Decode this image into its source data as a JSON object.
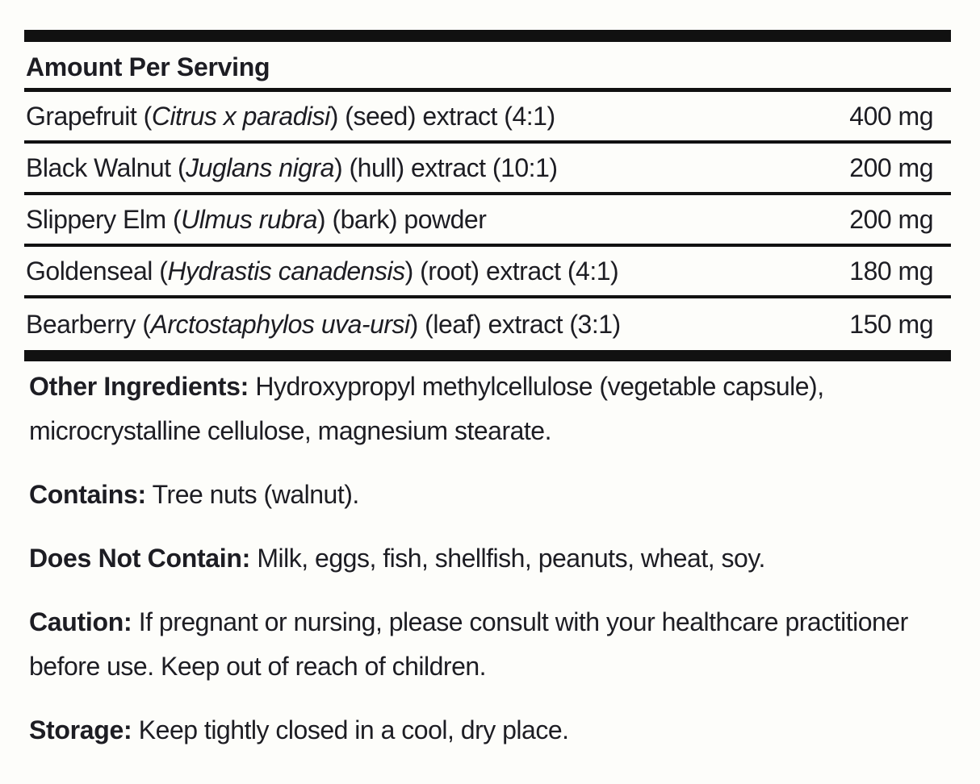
{
  "panel": {
    "header": "Amount Per Serving",
    "rows": [
      {
        "prefix": "Grapefruit (",
        "latin": "Citrus x paradisi",
        "suffix": ") (seed) extract (4:1)",
        "amount": "400 mg"
      },
      {
        "prefix": "Black Walnut (",
        "latin": "Juglans nigra",
        "suffix": ") (hull) extract (10:1)",
        "amount": "200 mg"
      },
      {
        "prefix": "Slippery Elm (",
        "latin": "Ulmus rubra",
        "suffix": ") (bark) powder",
        "amount": "200 mg"
      },
      {
        "prefix": "Goldenseal (",
        "latin": "Hydrastis canadensis",
        "suffix": ") (root) extract (4:1)",
        "amount": "180 mg"
      },
      {
        "prefix": "Bearberry (",
        "latin": "Arctostaphylos uva-ursi",
        "suffix": ") (leaf) extract (3:1)",
        "amount": "150 mg"
      }
    ],
    "paragraphs": [
      {
        "lead": "Other Ingredients:",
        "text": " Hydroxypropyl methylcellulose (vegetable capsule), microcrystalline cellulose, magnesium stearate."
      },
      {
        "lead": "Contains:",
        "text": " Tree nuts (walnut)."
      },
      {
        "lead": "Does Not Contain:",
        "text": " Milk, eggs, fish, shellfish, peanuts, wheat, soy."
      },
      {
        "lead": "Caution:",
        "text": " If pregnant or nursing, please consult with your healthcare practitioner before use. Keep out of reach of children."
      },
      {
        "lead": "Storage:",
        "text": " Keep tightly closed in a cool, dry place."
      }
    ],
    "colors": {
      "text": "#1d1d23",
      "rule": "#111111",
      "background": "#fdfdfa"
    }
  }
}
